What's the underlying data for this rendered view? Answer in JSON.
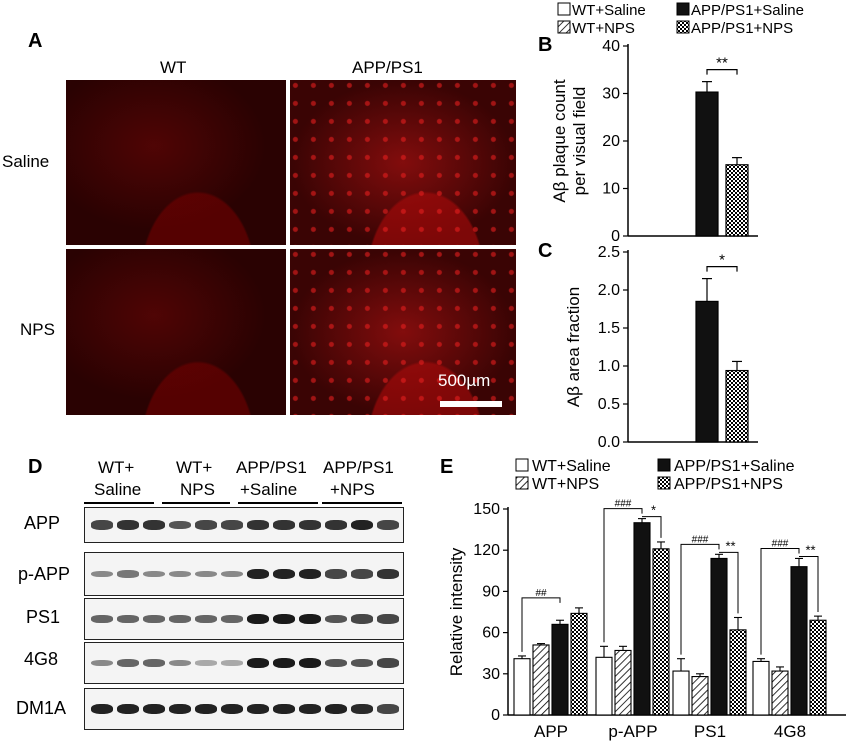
{
  "panel_letters": {
    "A": "A",
    "B": "B",
    "C": "C",
    "D": "D",
    "E": "E"
  },
  "panelA": {
    "col_labels": [
      "WT",
      "APP/PS1"
    ],
    "row_labels": [
      "Saline",
      "NPS"
    ],
    "scale_bar": "500µm"
  },
  "legend_top": [
    "WT+Saline",
    "APP/PS1+Saline",
    "WT+NPS",
    "APP/PS1+NPS"
  ],
  "panelD": {
    "group_labels": [
      [
        "WT+",
        "Saline"
      ],
      [
        "WT+",
        "NPS"
      ],
      [
        "APP/PS1",
        "+Saline"
      ],
      [
        "APP/PS1",
        "+NPS"
      ]
    ],
    "blot_labels": [
      "APP",
      "p-APP",
      "PS1",
      "4G8",
      "DM1A"
    ]
  },
  "chart_data": [
    {
      "type": "bar",
      "panel": "B",
      "ylabel": "Aβ plaque count per visual field",
      "ylim": [
        0,
        40
      ],
      "yticks": [
        0,
        10,
        20,
        30,
        40
      ],
      "series": [
        {
          "name": "WT+Saline",
          "values": [
            0
          ],
          "err": [
            0
          ]
        },
        {
          "name": "WT+NPS",
          "values": [
            0
          ],
          "err": [
            0
          ]
        },
        {
          "name": "APP/PS1+Saline",
          "values": [
            30.3
          ],
          "err": [
            2.2
          ]
        },
        {
          "name": "APP/PS1+NPS",
          "values": [
            15.0
          ],
          "err": [
            1.5
          ]
        }
      ],
      "annotations": [
        "**"
      ]
    },
    {
      "type": "bar",
      "panel": "C",
      "ylabel": "Aβ area fraction",
      "ylim": [
        0,
        2.5
      ],
      "yticks": [
        "0.0",
        "0.5",
        "1.0",
        "1.5",
        "2.0",
        "2.5"
      ],
      "series": [
        {
          "name": "WT+Saline",
          "values": [
            0
          ],
          "err": [
            0
          ]
        },
        {
          "name": "WT+NPS",
          "values": [
            0
          ],
          "err": [
            0
          ]
        },
        {
          "name": "APP/PS1+Saline",
          "values": [
            1.85
          ],
          "err": [
            0.3
          ]
        },
        {
          "name": "APP/PS1+NPS",
          "values": [
            0.94
          ],
          "err": [
            0.12
          ]
        }
      ],
      "annotations": [
        "*"
      ]
    },
    {
      "type": "bar",
      "panel": "E",
      "ylabel": "Relative intensity",
      "ylim": [
        0,
        150
      ],
      "yticks": [
        0,
        30,
        60,
        90,
        120,
        150
      ],
      "categories": [
        "APP",
        "p-APP",
        "PS1",
        "4G8"
      ],
      "legend": [
        "WT+Saline",
        "APP/PS1+Saline",
        "WT+NPS",
        "APP/PS1+NPS"
      ],
      "series": [
        {
          "name": "WT+Saline",
          "values": [
            41,
            42,
            32,
            39
          ],
          "err": [
            2,
            8,
            9,
            2
          ]
        },
        {
          "name": "WT+NPS",
          "values": [
            51,
            47,
            28,
            32
          ],
          "err": [
            1,
            3,
            2,
            3
          ]
        },
        {
          "name": "APP/PS1+Saline",
          "values": [
            66,
            140,
            114,
            108
          ],
          "err": [
            3,
            3,
            3,
            6
          ]
        },
        {
          "name": "APP/PS1+NPS",
          "values": [
            74,
            121,
            62,
            69
          ],
          "err": [
            4,
            5,
            9,
            3
          ]
        }
      ],
      "annotations": [
        {
          "category": "APP",
          "labels": [
            "##"
          ]
        },
        {
          "category": "p-APP",
          "labels": [
            "###",
            "*"
          ]
        },
        {
          "category": "PS1",
          "labels": [
            "###",
            "**"
          ]
        },
        {
          "category": "4G8",
          "labels": [
            "###",
            "**"
          ]
        }
      ]
    }
  ]
}
